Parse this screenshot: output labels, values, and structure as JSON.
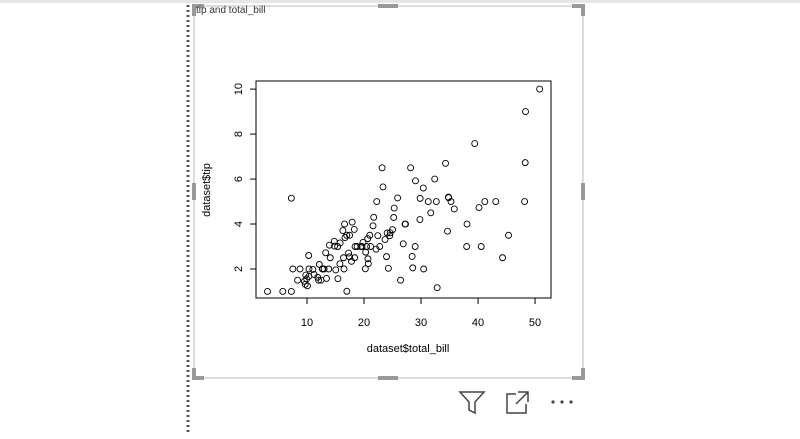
{
  "chart_data": {
    "type": "scatter",
    "title": "tip and total_bill",
    "x_label": "dataset$total_bill",
    "y_label": "dataset$tip",
    "xlim": [
      1.05,
      52.8
    ],
    "ylim": [
      0.71,
      10.36
    ],
    "xticks": [
      10,
      20,
      30,
      40,
      50
    ],
    "yticks": [
      2,
      4,
      6,
      8,
      10
    ],
    "color": "#000000",
    "x": [
      3.07,
      5.75,
      7.25,
      7.25,
      8.77,
      9.55,
      10.07,
      10.33,
      10.34,
      11.24,
      12.46,
      13.42,
      14.07,
      15.04,
      16.99,
      17.92,
      18.43,
      20.65,
      21.01,
      23.68,
      24.59,
      25.29,
      26.88,
      27.2,
      28.55,
      29.03,
      30.4,
      32.4,
      34.81,
      35.26,
      38.07,
      39.42,
      40.55,
      43.11,
      44.3,
      45.35,
      48.17,
      48.27,
      48.33,
      50.81,
      22.23,
      24.06,
      25,
      31.27,
      7.51,
      14.78,
      15.77,
      16.29,
      16.97,
      17.46,
      18.35,
      19.44,
      20.29,
      20.69,
      21.7,
      22.42,
      23.33,
      15.42,
      13.94,
      12.74,
      11.87,
      9.94,
      13.81,
      17.81,
      19.65,
      20.76,
      26.41,
      28.97,
      32.68,
      34.83,
      34.65,
      41.19,
      15.38,
      12.03,
      19.82,
      22.76,
      25.89,
      28.44,
      32.83,
      35.83,
      29.8,
      24.52,
      40.17,
      27.28,
      30.46,
      31.71,
      11.02,
      17.29,
      18.78,
      24.27,
      13,
      16.4,
      8.35,
      18.29,
      14.83,
      9.68,
      20.45,
      13.28,
      10.29,
      15.81,
      12.69,
      20.23,
      38.01,
      16.49,
      16.66,
      12.16,
      21.16,
      17.47,
      21.58,
      9.78,
      23.95,
      29.85,
      16.58,
      25.21,
      22.12,
      23.17,
      28.17,
      34.3
    ],
    "values": [
      1,
      1,
      1,
      5.15,
      2,
      1.45,
      1.25,
      1.67,
      2,
      1.76,
      1.5,
      1.58,
      2.5,
      1.96,
      1.01,
      4.08,
      3,
      3.35,
      3.5,
      3.31,
      3.61,
      4.71,
      3.12,
      4,
      2.05,
      5.92,
      5.6,
      6,
      5.2,
      5,
      4,
      7.58,
      3,
      5,
      2.5,
      3.5,
      5,
      6.73,
      9,
      10,
      5,
      3.6,
      3.75,
      5,
      2,
      3.23,
      2.23,
      3.71,
      3.5,
      2.54,
      2.5,
      3,
      2.75,
      2.45,
      4.3,
      3.48,
      5.65,
      1.57,
      3.06,
      2.01,
      1.63,
      1.56,
      2,
      2.34,
      3,
      2.24,
      1.5,
      3,
      5,
      5.17,
      3.68,
      5,
      3,
      1.5,
      3.18,
      3,
      5.16,
      2.56,
      1.17,
      4.67,
      4.2,
      3.48,
      4.73,
      4,
      2,
      4.5,
      1.98,
      2.71,
      3,
      2.03,
      2,
      2.5,
      1.5,
      3.76,
      3.02,
      1.32,
      3,
      2.72,
      2.6,
      3.16,
      2,
      2.01,
      3,
      2,
      3.4,
      2.2,
      3,
      3.5,
      3.92,
      1.73,
      2.55,
      5.14,
      4,
      4.29,
      2.88,
      6.5,
      6.5,
      6.7
    ]
  }
}
